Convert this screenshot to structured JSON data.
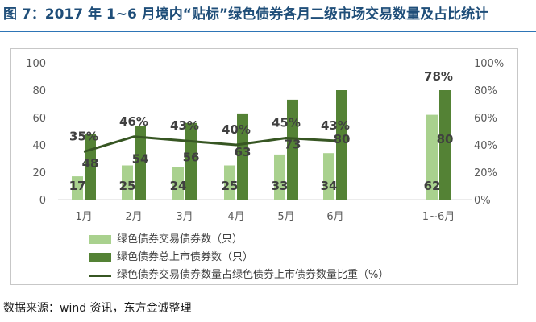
{
  "title": "图 7：2017 年 1~6 月境内“贴标”绿色债券各月二级市场交易数量及占比统计",
  "source": "数据来源：wind 资讯，东方金诚整理",
  "colors": {
    "light": "#a9d18e",
    "dark": "#548235",
    "line": "#375623",
    "axis_text": "#595959"
  },
  "chart_data": {
    "type": "bar",
    "categories": [
      "1月",
      "2月",
      "3月",
      "4月",
      "5月",
      "6月",
      "1~6月"
    ],
    "series": [
      {
        "name": "绿色债券交易债券数（只）",
        "type": "bar",
        "axis": "left",
        "values": [
          17,
          25,
          24,
          25,
          33,
          34,
          62
        ]
      },
      {
        "name": "绿色债券总上市债券数（只）",
        "type": "bar",
        "axis": "left",
        "values": [
          48,
          54,
          56,
          63,
          73,
          80,
          80
        ]
      },
      {
        "name": "绿色债券交易债券数量占绿色债券上市债券数量比重（%）",
        "type": "line",
        "axis": "right",
        "values": [
          35,
          46,
          43,
          40,
          45,
          43,
          null
        ],
        "point_labels": [
          "35%",
          "46%",
          "43%",
          "40%",
          "45%",
          "43%",
          "78%"
        ]
      }
    ],
    "y_left": {
      "range": [
        0,
        100
      ],
      "ticks": [
        "0",
        "20",
        "40",
        "60",
        "80",
        "100"
      ]
    },
    "y_right": {
      "range": [
        0,
        100
      ],
      "ticks": [
        "0%",
        "20%",
        "40%",
        "60%",
        "80%",
        "100%"
      ]
    },
    "grid": false,
    "legend_position": "bottom"
  }
}
